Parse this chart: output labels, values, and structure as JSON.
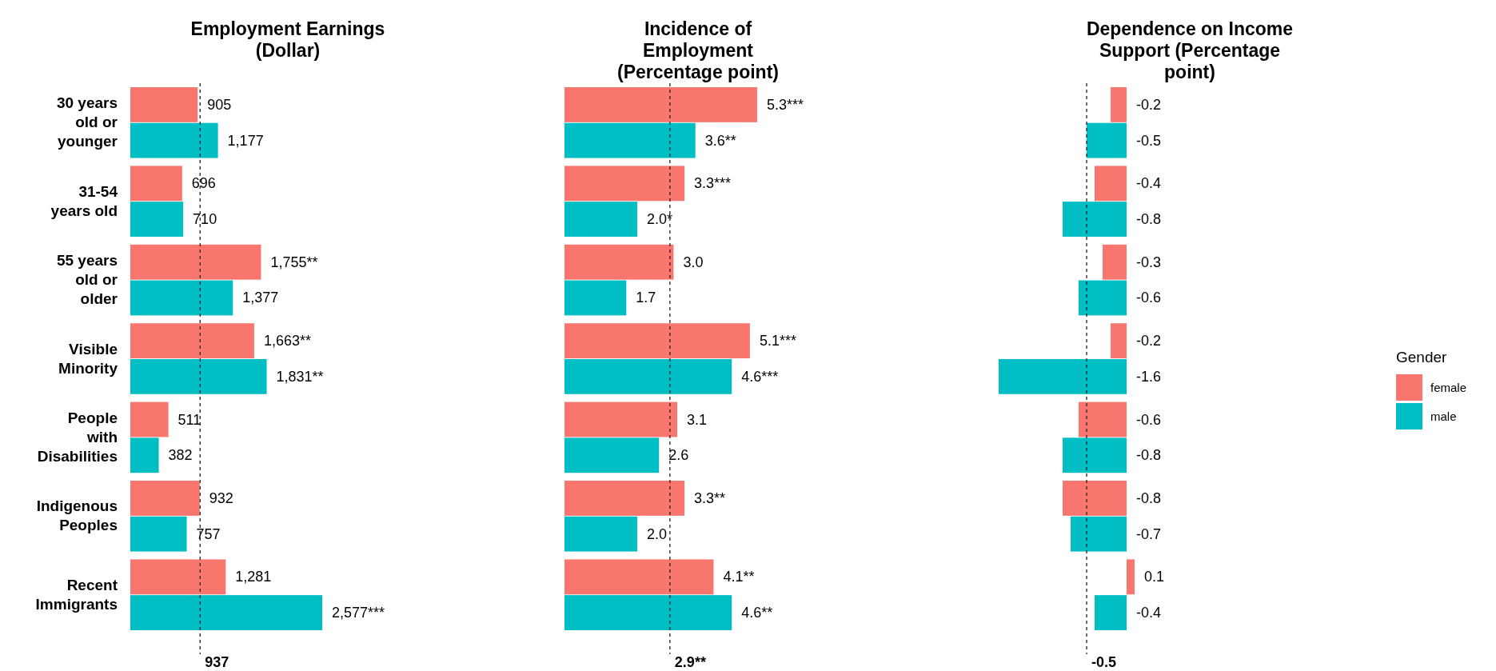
{
  "chart_data": [
    {
      "type": "bar",
      "orientation": "horizontal",
      "title": "Employment Earnings (Dollar)",
      "tick_labels": "y",
      "legend": false,
      "categories": [
        "30 years old or younger",
        "31-54 years old",
        "55 years old or older",
        "Visible Minority",
        "People with Disabilities",
        "Indigenous Peoples",
        "Recent Immigrants"
      ],
      "series": [
        {
          "color": "#f8766d",
          "values": [
            905,
            696,
            1755,
            1663,
            511,
            932,
            1281
          ],
          "value_labels": [
            "905",
            "696",
            "1,755**",
            "1,663**",
            "511",
            "932",
            "1,281"
          ]
        },
        {
          "color": "#00bfc4",
          "values": [
            1177,
            710,
            1377,
            1831,
            382,
            757,
            2577
          ],
          "value_labels": [
            "1,177",
            "710",
            "1,377",
            "1,831**",
            "382",
            "757",
            "2,577***"
          ]
        }
      ],
      "ref_lines": [
        {
          "axis": "x",
          "value": 937,
          "label": "937",
          "line_style": "dashed"
        }
      ]
    },
    {
      "type": "bar",
      "orientation": "horizontal",
      "title": "Incidence of Employment (Percentage point)",
      "tick_labels": false,
      "legend": false,
      "series": [
        {
          "color": "#f8766d",
          "values": [
            5.3,
            3.3,
            3.0,
            5.1,
            3.1,
            3.3,
            4.1
          ],
          "value_labels": [
            "5.3***",
            "3.3***",
            "3.0",
            "5.1***",
            "3.1",
            "3.3**",
            "4.1**"
          ]
        },
        {
          "color": "#00bfc4",
          "values": [
            3.6,
            2.0,
            1.7,
            4.6,
            2.6,
            2.0,
            4.6
          ],
          "value_labels": [
            "3.6**",
            "2.0*",
            "1.7",
            "4.6***",
            "2.6",
            "2.0",
            "4.6**"
          ]
        }
      ],
      "ref_lines": [
        {
          "axis": "x",
          "value": 2.9,
          "label": "2.9**",
          "line_style": "dashed"
        }
      ]
    },
    {
      "type": "bar",
      "orientation": "horizontal",
      "title": "Dependence on Income Support (Percentage point)",
      "tick_labels": false,
      "legend": "right",
      "legend_title": "Gender",
      "series": [
        {
          "name": "female",
          "color": "#f8766d",
          "values": [
            -0.2,
            -0.4,
            -0.3,
            -0.2,
            -0.6,
            -0.8,
            0.1
          ],
          "value_labels": [
            "-0.2",
            "-0.4",
            "-0.3",
            "-0.2",
            "-0.6",
            "-0.8",
            "0.1"
          ]
        },
        {
          "name": "male",
          "color": "#00bfc4",
          "values": [
            -0.5,
            -0.8,
            -0.6,
            -1.6,
            -0.8,
            -0.7,
            -0.4
          ],
          "value_labels": [
            "-0.5",
            "-0.8",
            "-0.6",
            "-1.6",
            "-0.8",
            "-0.7",
            "-0.4"
          ]
        }
      ],
      "ref_lines": [
        {
          "axis": "x",
          "value": -0.5,
          "label": "-0.5",
          "line_style": "dashed"
        }
      ]
    }
  ]
}
